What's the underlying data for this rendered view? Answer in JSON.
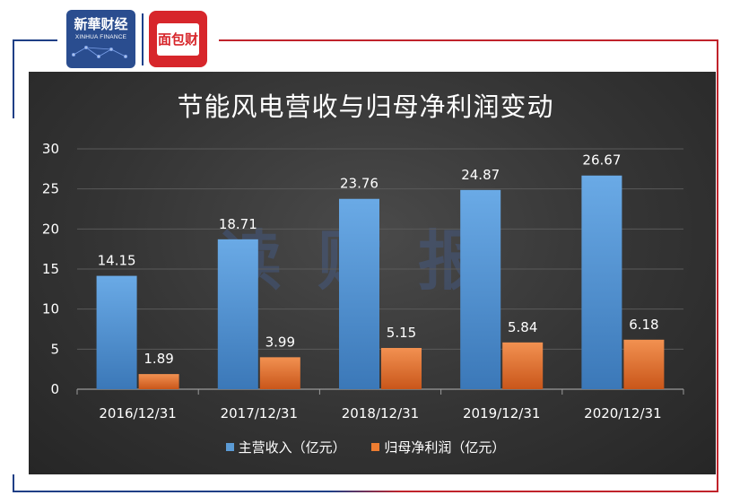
{
  "brand": {
    "logo_primary_text": "新華财经",
    "logo_primary_sub": "XINHUA FINANCE",
    "logo_secondary_text": "面包财经",
    "frame_color_left": "#1f3f86",
    "frame_color_right": "#c0232b"
  },
  "watermark": "读财报",
  "chart_data": {
    "type": "bar",
    "title": "节能风电营收与归母净利润变动",
    "categories": [
      "2016/12/31",
      "2017/12/31",
      "2018/12/31",
      "2019/12/31",
      "2020/12/31"
    ],
    "series": [
      {
        "name": "主营收入（亿元）",
        "values": [
          14.15,
          18.71,
          23.76,
          24.87,
          26.67
        ],
        "color": "#5b9bd5"
      },
      {
        "name": "归母净利润（亿元）",
        "values": [
          1.89,
          3.99,
          5.15,
          5.84,
          6.18
        ],
        "color": "#ed7d31"
      }
    ],
    "data_labels": [
      [
        "14.15",
        "18.71",
        "23.76",
        "24.87",
        "26.67"
      ],
      [
        "1.89",
        "3.99",
        "5.15",
        "5.84",
        "6.18"
      ]
    ],
    "y_ticks": [
      "0",
      "5",
      "10",
      "15",
      "20",
      "25",
      "30"
    ],
    "ylim": [
      0,
      30
    ],
    "grid": true,
    "legend_position": "bottom",
    "background": "#3a3a3a"
  }
}
